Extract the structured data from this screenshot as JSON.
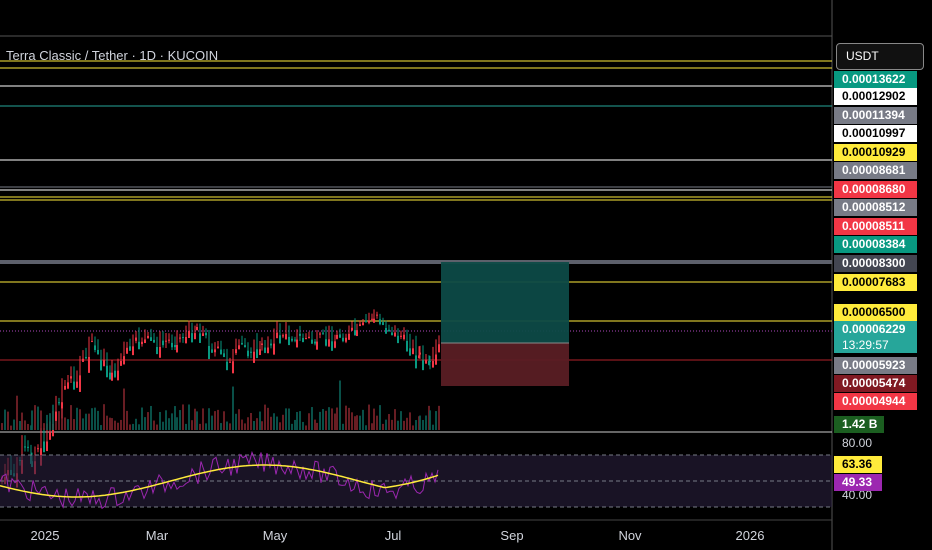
{
  "header": {
    "symbol_title": "Terra Classic / Tether · 1D · KUCOIN",
    "currency_button": "USDT"
  },
  "price_scale_tags": [
    {
      "label": "0.00013622",
      "bg": "#089981",
      "fg": "#ffffff",
      "level": 0.00013622
    },
    {
      "label": "0.00012902",
      "bg": "#ffffff",
      "fg": "#000000",
      "level": 0.00012902
    },
    {
      "label": "0.00011394",
      "bg": "#787b86",
      "fg": "#ffffff",
      "level": 0.00011394
    },
    {
      "label": "0.00010997",
      "bg": "#ffffff",
      "fg": "#000000",
      "level": 0.00010997
    },
    {
      "label": "0.00010929",
      "bg": "#ffeb3b",
      "fg": "#000000",
      "level": 0.00010929
    },
    {
      "label": "0.00008681",
      "bg": "#787b86",
      "fg": "#ffffff",
      "level": 8.681e-05
    },
    {
      "label": "0.00008680",
      "bg": "#f23645",
      "fg": "#ffffff",
      "level": 8.68e-05
    },
    {
      "label": "0.00008512",
      "bg": "#787b86",
      "fg": "#ffffff",
      "level": 8.512e-05
    },
    {
      "label": "0.00008511",
      "bg": "#f23645",
      "fg": "#ffffff",
      "level": 8.511e-05
    },
    {
      "label": "0.00008384",
      "bg": "#089981",
      "fg": "#ffffff",
      "level": 8.384e-05
    },
    {
      "label": "0.00008300",
      "bg": "#434651",
      "fg": "#ffffff",
      "level": 8.3e-05
    },
    {
      "label": "0.00007683",
      "bg": "#ffeb3b",
      "fg": "#000000",
      "level": 7.683e-05
    },
    {
      "label": "0.00006500",
      "bg": "#ffeb3b",
      "fg": "#000000",
      "level": 6.5e-05
    },
    {
      "label": "0.00006229",
      "bg": "#26a69a",
      "fg": "#ffffff",
      "level": 6.229e-05
    },
    {
      "label": "0.00005923",
      "bg": "#787b86",
      "fg": "#ffffff",
      "level": 5.923e-05
    },
    {
      "label": "0.00005474",
      "bg": "#801922",
      "fg": "#ffffff",
      "level": 5.474e-05
    },
    {
      "label": "0.00004944",
      "bg": "#f23645",
      "fg": "#ffffff",
      "level": 4.944e-05
    },
    {
      "label": "1.42 B",
      "bg": "#1b5e20",
      "fg": "#ffffff",
      "level": null
    }
  ],
  "countdown": "13:29:57",
  "rsi": {
    "tick_labels": [
      "80.00",
      "40.00"
    ],
    "values": [
      {
        "label": "63.36",
        "bg": "#ffeb3b",
        "fg": "#000000"
      },
      {
        "label": "49.33",
        "bg": "#9c27b0",
        "fg": "#ffffff"
      }
    ]
  },
  "colors": {
    "up": "#089981",
    "down": "#f23645",
    "level_yellow": "#ffeb3b",
    "level_white": "#ffffff",
    "level_teal": "#26a69a",
    "level_gray": "#787b86",
    "level_red": "#b2222a",
    "rsi_line": "#ffeb3b",
    "rsi_purple": "#9c27b0"
  },
  "chart_data": {
    "type": "candlestick",
    "x_tick_labels": [
      "2025",
      "Mar",
      "May",
      "Jul",
      "Sep",
      "Nov",
      "2026"
    ],
    "horizontal_levels": [
      0.00013622,
      0.00012902,
      0.00011394,
      0.00010997,
      0.00010929,
      8.681e-05,
      8.68e-05,
      8.512e-05,
      8.511e-05,
      8.3e-05,
      7.683e-05,
      6.5e-05,
      5.923e-05
    ],
    "last_price": 6.229e-05,
    "position": {
      "entry": 6.229e-05,
      "target": 8.3e-05,
      "stop": 5.474e-05
    }
  }
}
